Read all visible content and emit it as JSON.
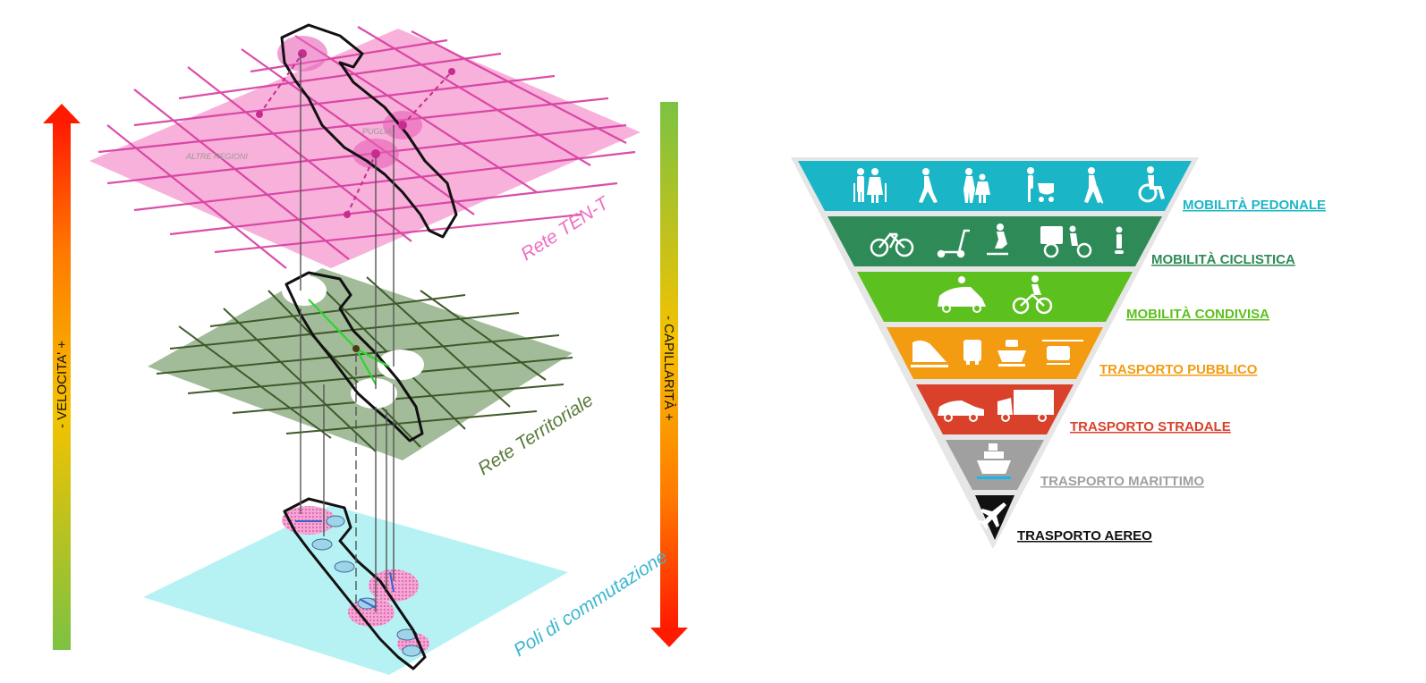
{
  "left_axis": {
    "label": "-  VELOCITA'  +"
  },
  "right_axis": {
    "label": "-  CAPILLARITÀ  +"
  },
  "layers": {
    "top": {
      "label": "Rete TEN-T",
      "region_label": "PUGLIA",
      "other_label": "ALTRE REGIONI"
    },
    "middle": {
      "label": "Rete Territoriale"
    },
    "bottom": {
      "label": "Poli di commutazione"
    }
  },
  "pyramid": {
    "levels": [
      {
        "label": "MOBILITÀ PEDONALE",
        "color": "#1ab6c7"
      },
      {
        "label": "MOBILITÀ CICLISTICA",
        "color": "#2e8b57"
      },
      {
        "label": "MOBILITÀ CONDIVISA",
        "color": "#5cc01e"
      },
      {
        "label": "TRASPORTO PUBBLICO",
        "color": "#f39c12"
      },
      {
        "label": "TRASPORTO STRADALE",
        "color": "#d9412b"
      },
      {
        "label": "TRASPORTO MARITTIMO",
        "color": "#a0a0a0"
      },
      {
        "label": "TRASPORTO AEREO",
        "color": "#111111"
      }
    ]
  }
}
